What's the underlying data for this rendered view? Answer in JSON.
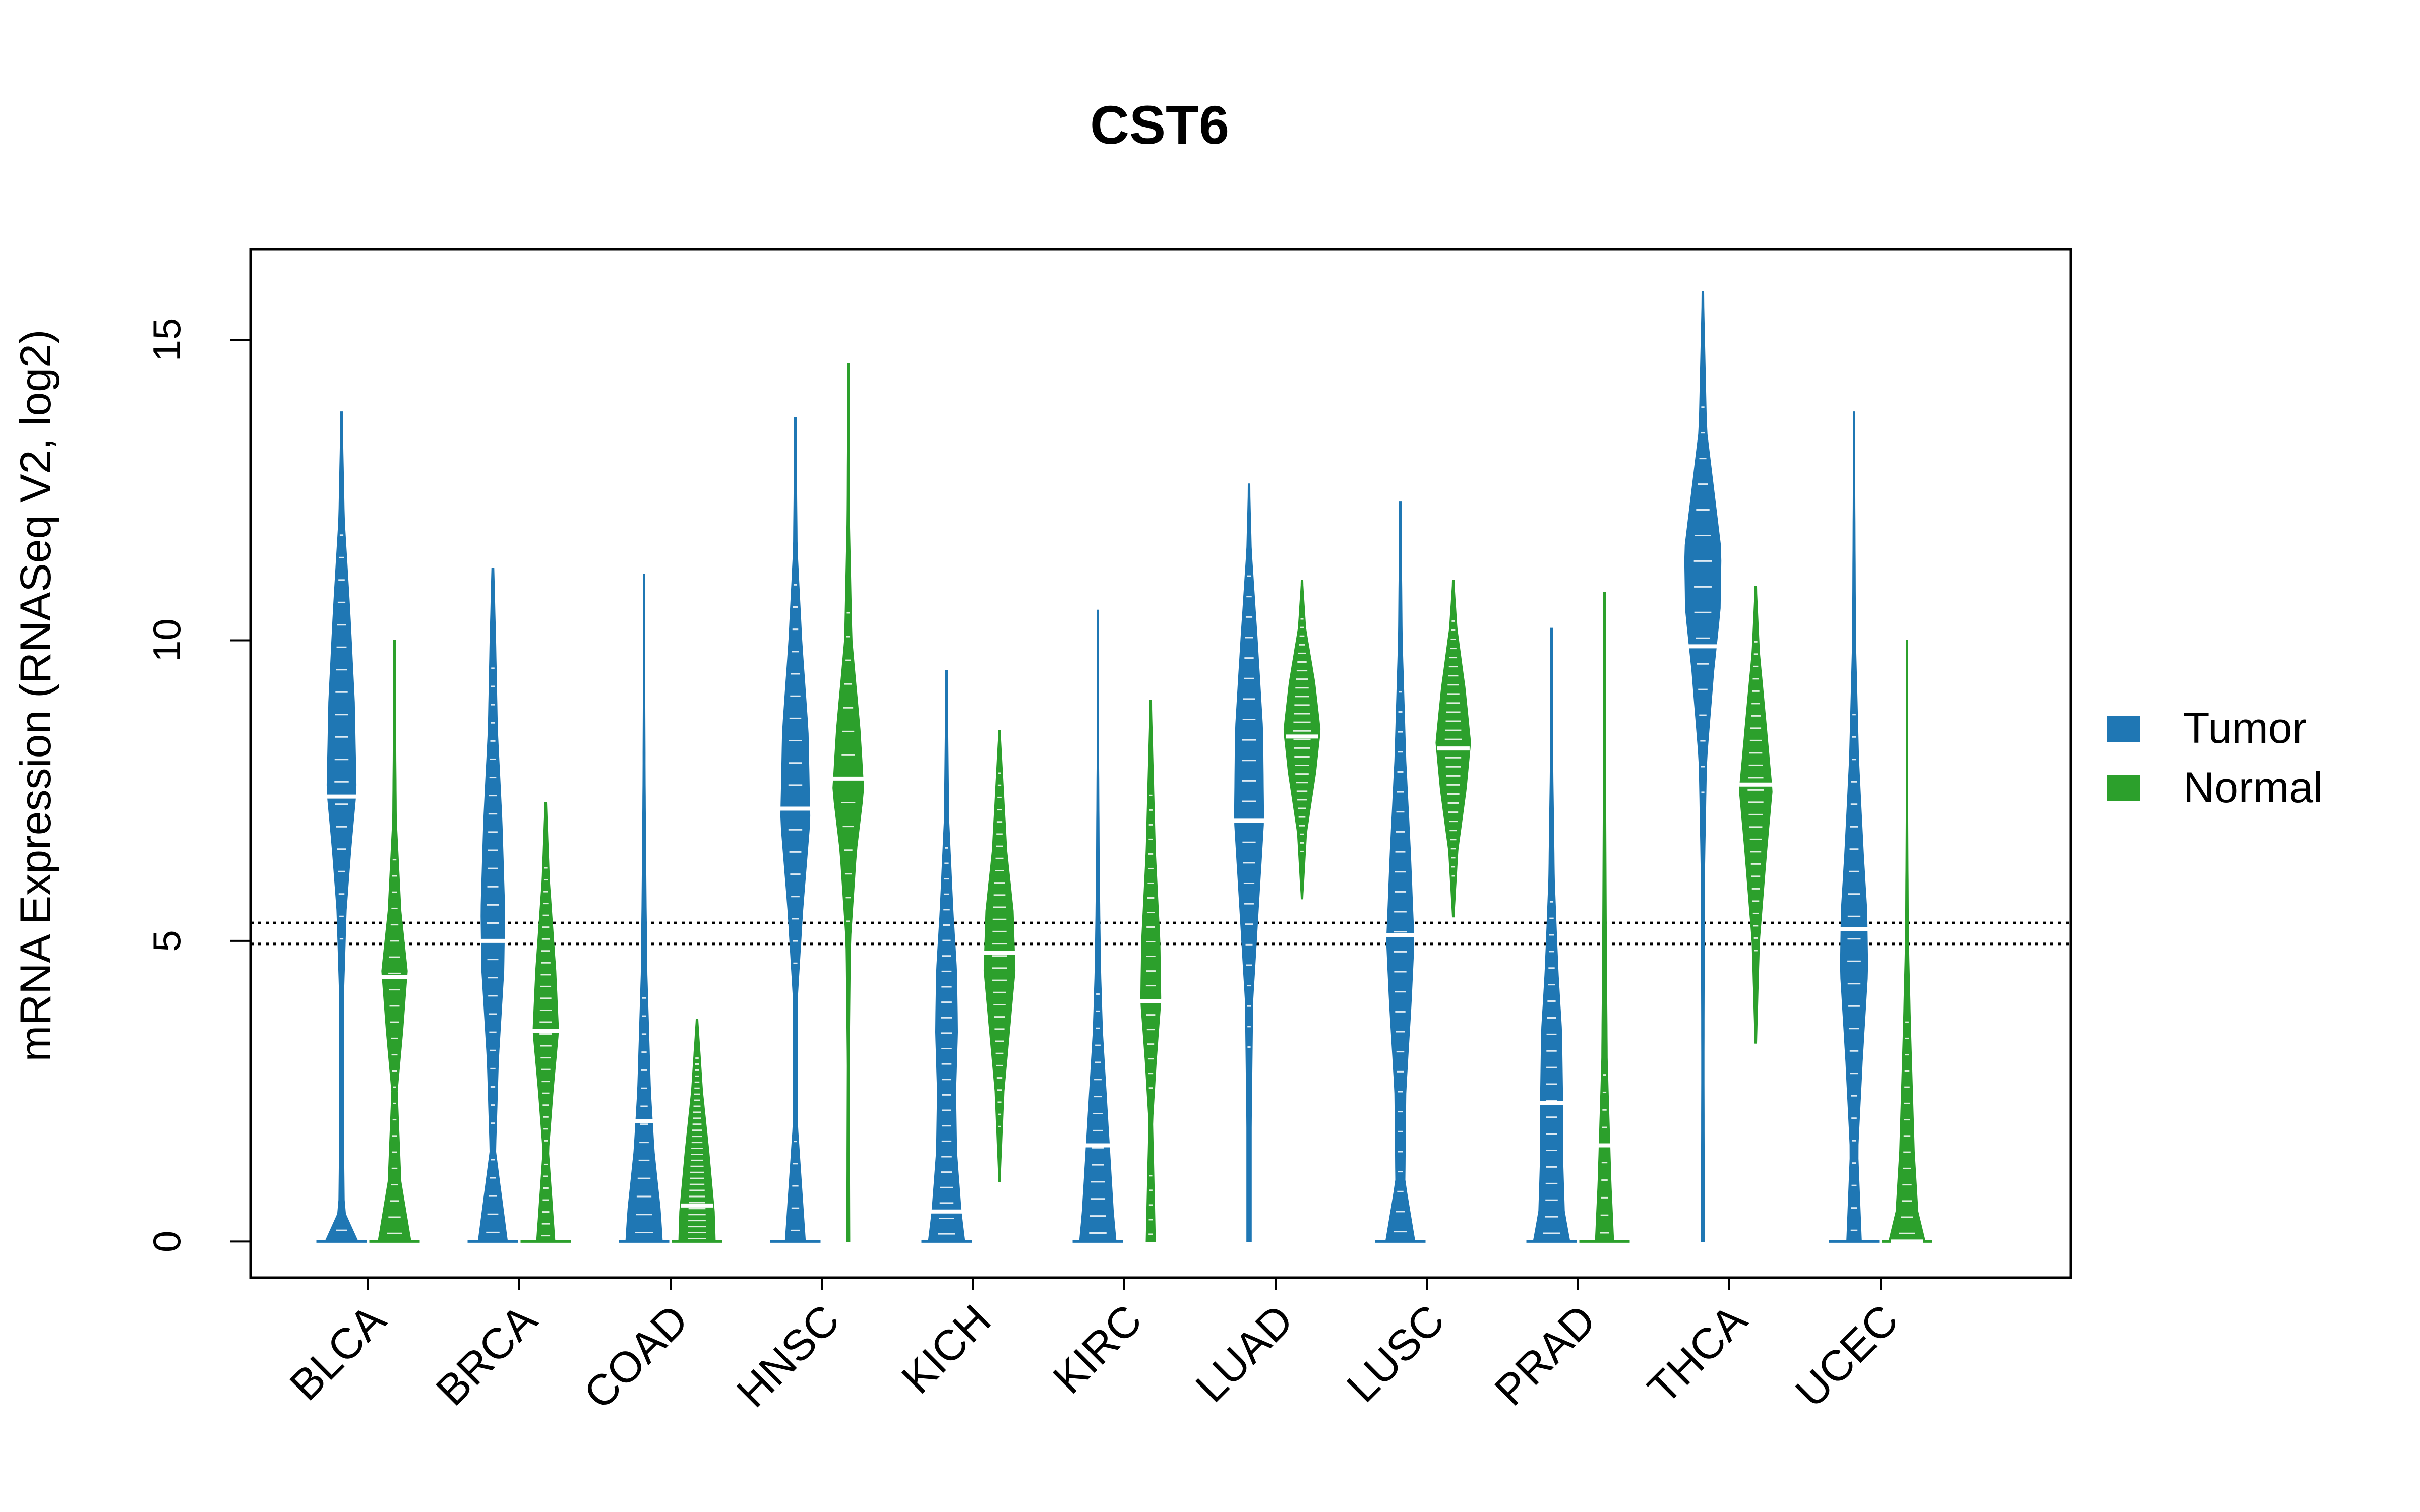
{
  "chart_data": {
    "type": "violin",
    "title": "CST6",
    "xlabel": "",
    "ylabel": "mRNA Expression (RNASeq V2, log2)",
    "ylim": [
      -0.6,
      16.5
    ],
    "yticks": [
      0,
      5,
      10,
      15
    ],
    "reference_lines": [
      4.95,
      5.3
    ],
    "legend": {
      "position": "right",
      "entries": [
        {
          "name": "Tumor",
          "color": "#1f77b4"
        },
        {
          "name": "Normal",
          "color": "#2ca02c"
        }
      ]
    },
    "categories": [
      "BLCA",
      "BRCA",
      "COAD",
      "HNSC",
      "KICH",
      "KIRC",
      "LUAD",
      "LUSC",
      "PRAD",
      "THCA",
      "UCEC"
    ],
    "series": [
      {
        "name": "Tumor",
        "color": "#1f77b4",
        "medians": [
          7.4,
          5.0,
          2.0,
          7.2,
          0.5,
          1.6,
          7.0,
          5.1,
          2.3,
          9.9,
          5.2
        ],
        "max": [
          13.8,
          11.2,
          11.1,
          13.7,
          9.5,
          10.5,
          12.6,
          12.3,
          10.2,
          15.8,
          13.8
        ],
        "profiles": [
          [
            [
              0,
              0.9
            ],
            [
              0.5,
              0.15
            ],
            [
              2,
              0.1
            ],
            [
              4,
              0.1
            ],
            [
              5.5,
              0.25
            ],
            [
              6.5,
              0.5
            ],
            [
              7.5,
              0.8
            ],
            [
              9,
              0.7
            ],
            [
              10.5,
              0.45
            ],
            [
              12,
              0.15
            ],
            [
              13.8,
              0.03
            ]
          ],
          [
            [
              0,
              0.8
            ],
            [
              1.5,
              0.15
            ],
            [
              3,
              0.3
            ],
            [
              4.5,
              0.6
            ],
            [
              5.5,
              0.65
            ],
            [
              7,
              0.5
            ],
            [
              8.5,
              0.25
            ],
            [
              10,
              0.15
            ],
            [
              11.2,
              0.05
            ]
          ],
          [
            [
              0,
              1.0
            ],
            [
              0.5,
              0.9
            ],
            [
              1.5,
              0.55
            ],
            [
              2.5,
              0.35
            ],
            [
              3.5,
              0.25
            ],
            [
              4.5,
              0.15
            ],
            [
              6,
              0.1
            ],
            [
              7.5,
              0.06
            ],
            [
              9,
              0.04
            ],
            [
              11.1,
              0.02
            ]
          ],
          [
            [
              0,
              0.55
            ],
            [
              2,
              0.1
            ],
            [
              4,
              0.1
            ],
            [
              5.5,
              0.4
            ],
            [
              7,
              0.8
            ],
            [
              8.5,
              0.7
            ],
            [
              10,
              0.35
            ],
            [
              11.5,
              0.1
            ],
            [
              13.7,
              0.03
            ]
          ],
          [
            [
              0,
              1.0
            ],
            [
              0.5,
              0.8
            ],
            [
              1.5,
              0.55
            ],
            [
              2.5,
              0.5
            ],
            [
              3.5,
              0.6
            ],
            [
              4.5,
              0.55
            ],
            [
              5.5,
              0.35
            ],
            [
              7,
              0.12
            ],
            [
              9.5,
              0.03
            ]
          ],
          [
            [
              0,
              1.0
            ],
            [
              0.5,
              0.85
            ],
            [
              1.5,
              0.65
            ],
            [
              2.5,
              0.45
            ],
            [
              3.5,
              0.25
            ],
            [
              4.5,
              0.15
            ],
            [
              6,
              0.08
            ],
            [
              8,
              0.04
            ],
            [
              10.5,
              0.02
            ]
          ],
          [
            [
              0,
              0.12
            ],
            [
              2,
              0.12
            ],
            [
              4,
              0.2
            ],
            [
              5.5,
              0.5
            ],
            [
              7,
              0.8
            ],
            [
              8.5,
              0.75
            ],
            [
              10,
              0.45
            ],
            [
              11.5,
              0.12
            ],
            [
              12.6,
              0.03
            ]
          ],
          [
            [
              0,
              0.8
            ],
            [
              1,
              0.25
            ],
            [
              2.5,
              0.3
            ],
            [
              4,
              0.6
            ],
            [
              5,
              0.75
            ],
            [
              6.5,
              0.55
            ],
            [
              8,
              0.3
            ],
            [
              10,
              0.1
            ],
            [
              12.3,
              0.03
            ]
          ],
          [
            [
              0,
              1.0
            ],
            [
              0.5,
              0.7
            ],
            [
              1.5,
              0.6
            ],
            [
              2.5,
              0.6
            ],
            [
              3.5,
              0.55
            ],
            [
              4.5,
              0.35
            ],
            [
              6,
              0.15
            ],
            [
              8,
              0.06
            ],
            [
              10.2,
              0.02
            ]
          ],
          [
            [
              0,
              0.08
            ],
            [
              3,
              0.06
            ],
            [
              6,
              0.08
            ],
            [
              8,
              0.2
            ],
            [
              9.5,
              0.6
            ],
            [
              10.5,
              0.95
            ],
            [
              11.5,
              1.0
            ],
            [
              12.5,
              0.6
            ],
            [
              13.5,
              0.2
            ],
            [
              15.8,
              0.03
            ]
          ],
          [
            [
              0,
              0.4
            ],
            [
              1.5,
              0.2
            ],
            [
              3,
              0.45
            ],
            [
              4.5,
              0.75
            ],
            [
              5.5,
              0.7
            ],
            [
              6.5,
              0.5
            ],
            [
              8,
              0.25
            ],
            [
              10,
              0.08
            ],
            [
              13.8,
              0.02
            ]
          ]
        ]
      },
      {
        "name": "Normal",
        "color": "#2ca02c",
        "medians": [
          4.4,
          3.5,
          0.6,
          7.7,
          4.8,
          4.0,
          8.4,
          8.2,
          1.6,
          7.6,
          0.0
        ],
        "max": [
          10.0,
          7.3,
          3.7,
          14.6,
          8.5,
          9.0,
          11.0,
          11.0,
          10.8,
          10.9,
          10.0
        ],
        "profiles": [
          [
            [
              0,
              0.9
            ],
            [
              1,
              0.35
            ],
            [
              2.5,
              0.15
            ],
            [
              3.5,
              0.45
            ],
            [
              4.5,
              0.7
            ],
            [
              5.5,
              0.35
            ],
            [
              7,
              0.1
            ],
            [
              10,
              0.02
            ]
          ],
          [
            [
              0,
              0.5
            ],
            [
              1.5,
              0.15
            ],
            [
              2.5,
              0.4
            ],
            [
              3.5,
              0.7
            ],
            [
              4.5,
              0.55
            ],
            [
              6,
              0.2
            ],
            [
              7.3,
              0.04
            ]
          ],
          [
            [
              0,
              1.0
            ],
            [
              0.5,
              0.95
            ],
            [
              1.5,
              0.65
            ],
            [
              2.5,
              0.3
            ],
            [
              3.7,
              0.04
            ]
          ],
          [
            [
              0,
              0.08
            ],
            [
              3,
              0.05
            ],
            [
              5,
              0.12
            ],
            [
              6.5,
              0.45
            ],
            [
              7.5,
              0.85
            ],
            [
              8.5,
              0.65
            ],
            [
              10,
              0.2
            ],
            [
              12,
              0.06
            ],
            [
              14.6,
              0.02
            ]
          ],
          [
            [
              1,
              0.04
            ],
            [
              2.5,
              0.25
            ],
            [
              3.5,
              0.55
            ],
            [
              4.5,
              0.85
            ],
            [
              5.5,
              0.75
            ],
            [
              6.5,
              0.4
            ],
            [
              8.5,
              0.04
            ]
          ],
          [
            [
              0,
              0.25
            ],
            [
              2,
              0.1
            ],
            [
              3,
              0.3
            ],
            [
              4,
              0.55
            ],
            [
              5,
              0.5
            ],
            [
              6.5,
              0.25
            ],
            [
              9,
              0.03
            ]
          ],
          [
            [
              5.7,
              0.04
            ],
            [
              6.8,
              0.25
            ],
            [
              7.8,
              0.75
            ],
            [
              8.5,
              1.0
            ],
            [
              9.3,
              0.7
            ],
            [
              10.2,
              0.2
            ],
            [
              11,
              0.03
            ]
          ],
          [
            [
              5.4,
              0.04
            ],
            [
              6.5,
              0.25
            ],
            [
              7.5,
              0.7
            ],
            [
              8.3,
              0.95
            ],
            [
              9.2,
              0.65
            ],
            [
              10.2,
              0.2
            ],
            [
              11,
              0.03
            ]
          ],
          [
            [
              0,
              0.5
            ],
            [
              1,
              0.35
            ],
            [
              2,
              0.25
            ],
            [
              3,
              0.15
            ],
            [
              5,
              0.1
            ],
            [
              7,
              0.07
            ],
            [
              10.8,
              0.02
            ]
          ],
          [
            [
              3.3,
              0.04
            ],
            [
              5,
              0.2
            ],
            [
              6.5,
              0.6
            ],
            [
              7.5,
              0.9
            ],
            [
              8.5,
              0.6
            ],
            [
              9.8,
              0.2
            ],
            [
              10.9,
              0.03
            ]
          ],
          [
            [
              0,
              1.0
            ],
            [
              0.5,
              0.6
            ],
            [
              1.5,
              0.4
            ],
            [
              2.5,
              0.3
            ],
            [
              3.5,
              0.2
            ],
            [
              5,
              0.08
            ],
            [
              7,
              0.04
            ],
            [
              10,
              0.02
            ]
          ]
        ]
      }
    ]
  }
}
